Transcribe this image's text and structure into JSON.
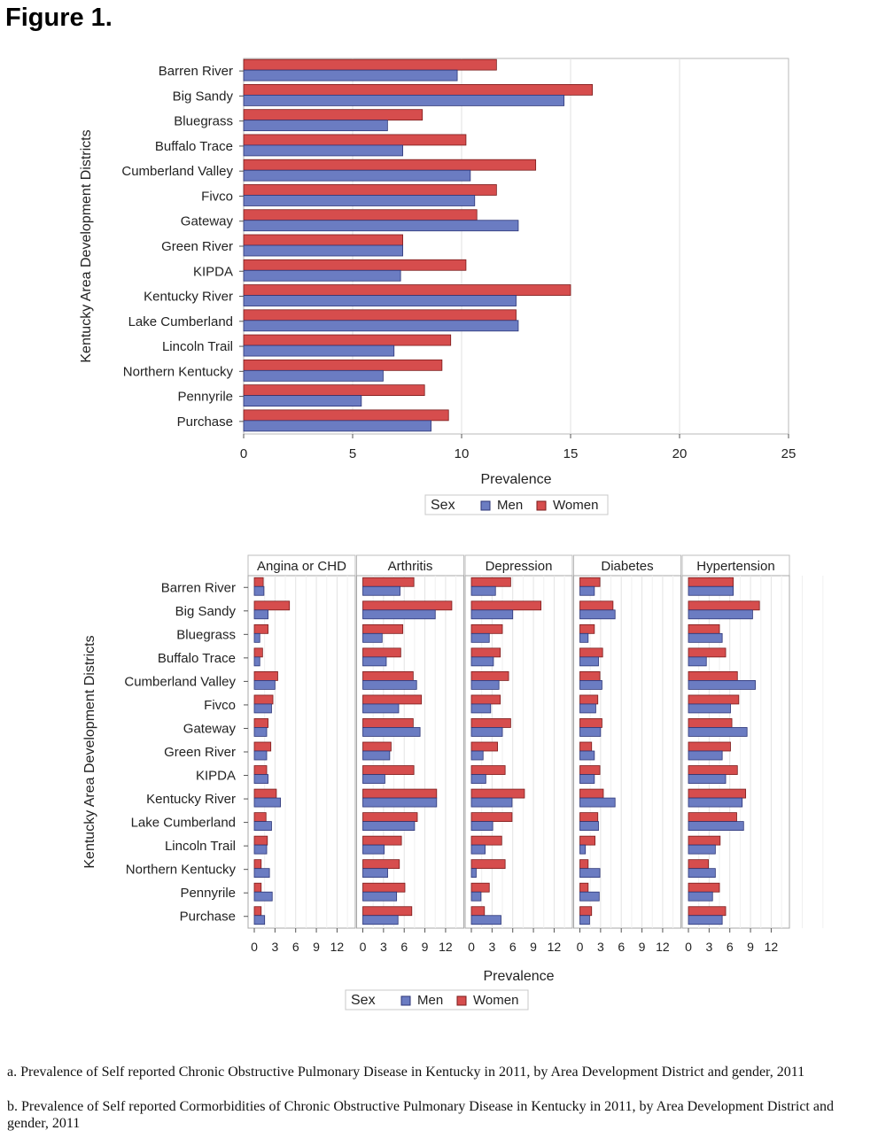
{
  "figure_title": "Figure 1.",
  "captions": [
    "a. Prevalence of Self reported Chronic Obstructive Pulmonary Disease in Kentucky in 2011, by Area Development District and gender, 2011",
    "b. Prevalence of Self reported Cormorbidities of Chronic Obstructive Pulmonary Disease in Kentucky in 2011, by Area Development District and gender, 2011"
  ],
  "colors": {
    "men": "#6b7cc2",
    "women": "#d64d4d",
    "men_stroke": "#2c3577",
    "women_stroke": "#7a1b1b"
  },
  "chart_data": [
    {
      "type": "bar",
      "orientation": "horizontal",
      "categories": [
        "Barren River",
        "Big Sandy",
        "Bluegrass",
        "Buffalo Trace",
        "Cumberland Valley",
        "Fivco",
        "Gateway",
        "Green River",
        "KIPDA",
        "Kentucky River",
        "Lake Cumberland",
        "Lincoln Trail",
        "Northern Kentucky",
        "Pennyrile",
        "Purchase"
      ],
      "series": [
        {
          "name": "Women",
          "values": [
            11.6,
            16.0,
            8.2,
            10.2,
            13.4,
            11.6,
            10.7,
            7.3,
            10.2,
            15.0,
            12.5,
            9.5,
            9.1,
            8.3,
            9.4
          ]
        },
        {
          "name": "Men",
          "values": [
            9.8,
            14.7,
            6.6,
            7.3,
            10.4,
            10.6,
            12.6,
            7.3,
            7.2,
            12.5,
            12.6,
            6.9,
            6.4,
            5.4,
            8.6
          ]
        }
      ],
      "xlabel": "Prevalence",
      "ylabel": "Kentucky Area Development Districts",
      "xlim": [
        0,
        25
      ],
      "xticks": [
        0,
        5,
        10,
        15,
        20,
        25
      ],
      "legend_title": "Sex",
      "legend": [
        "Men",
        "Women"
      ],
      "legend_position": "bottom",
      "grid": true
    },
    {
      "type": "bar",
      "orientation": "horizontal",
      "categories": [
        "Barren River",
        "Big Sandy",
        "Bluegrass",
        "Buffalo Trace",
        "Cumberland Valley",
        "Fivco",
        "Gateway",
        "Green River",
        "KIPDA",
        "Kentucky River",
        "Lake Cumberland",
        "Lincoln Trail",
        "Northern Kentucky",
        "Pennyrile",
        "Purchase"
      ],
      "panels": [
        {
          "name": "Angina or CHD",
          "women": [
            1.3,
            5.1,
            2.0,
            1.2,
            3.4,
            2.7,
            2.0,
            2.4,
            1.8,
            3.2,
            1.7,
            1.9,
            1.0,
            1.0,
            1.0
          ],
          "men": [
            1.4,
            2.0,
            0.8,
            0.8,
            3.0,
            2.5,
            1.8,
            1.8,
            2.0,
            3.8,
            2.5,
            1.8,
            2.2,
            2.6,
            1.5
          ]
        },
        {
          "name": "Arthritis",
          "women": [
            7.4,
            12.9,
            5.8,
            5.5,
            7.3,
            8.5,
            7.3,
            4.1,
            7.4,
            10.7,
            7.9,
            5.6,
            5.3,
            6.1,
            7.1
          ],
          "men": [
            5.4,
            10.5,
            2.8,
            3.4,
            7.8,
            5.2,
            8.3,
            3.9,
            3.2,
            10.7,
            7.5,
            3.1,
            3.6,
            4.9,
            5.1
          ]
        },
        {
          "name": "Depression",
          "women": [
            5.7,
            10.1,
            4.5,
            4.2,
            5.4,
            4.2,
            5.7,
            3.8,
            4.9,
            7.7,
            5.9,
            4.4,
            4.9,
            2.6,
            1.9
          ],
          "men": [
            3.5,
            6.0,
            2.6,
            3.2,
            4.0,
            2.8,
            4.5,
            1.7,
            2.1,
            5.9,
            3.1,
            2.0,
            0.7,
            1.4,
            4.3
          ]
        },
        {
          "name": "Diabetes",
          "women": [
            2.9,
            4.8,
            2.1,
            3.3,
            2.9,
            2.6,
            3.2,
            1.7,
            2.9,
            3.4,
            2.6,
            2.2,
            1.2,
            1.2,
            1.7
          ],
          "men": [
            2.1,
            5.1,
            1.2,
            2.7,
            3.2,
            2.3,
            3.0,
            2.1,
            2.1,
            5.1,
            2.7,
            0.8,
            2.9,
            2.8,
            1.4
          ]
        },
        {
          "name": "Hypertension",
          "women": [
            6.5,
            10.3,
            4.5,
            5.4,
            7.1,
            7.3,
            6.3,
            6.1,
            7.1,
            8.3,
            7.0,
            4.6,
            2.9,
            4.5,
            5.4
          ],
          "men": [
            6.5,
            9.3,
            4.9,
            2.6,
            9.7,
            6.1,
            8.5,
            4.9,
            5.4,
            7.8,
            8.0,
            3.9,
            3.9,
            3.5,
            4.9
          ]
        }
      ],
      "xlabel": "Prevalence",
      "ylabel": "Kentucky Area Development Districts",
      "xlim": [
        0,
        14
      ],
      "xticks": [
        0,
        3,
        6,
        9,
        12
      ],
      "legend_title": "Sex",
      "legend": [
        "Men",
        "Women"
      ],
      "legend_position": "bottom",
      "grid": true
    }
  ]
}
